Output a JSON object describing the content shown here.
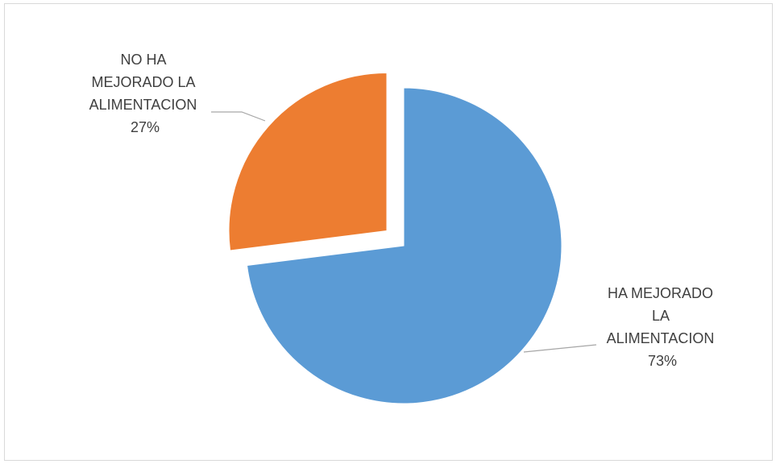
{
  "chart_data": {
    "type": "pie",
    "slices": [
      {
        "label_lines": [
          "HA MEJORADO",
          "LA",
          "ALIMENTACION"
        ],
        "value": 73,
        "value_text": "73%",
        "color": "#5B9BD5"
      },
      {
        "label_lines": [
          "NO HA",
          "MEJORADO LA",
          "ALIMENTACION"
        ],
        "value": 27,
        "value_text": "27%",
        "color": "#ED7D31"
      }
    ],
    "exploded_slice": 1,
    "leader_line_color": "#a6a6a6"
  }
}
